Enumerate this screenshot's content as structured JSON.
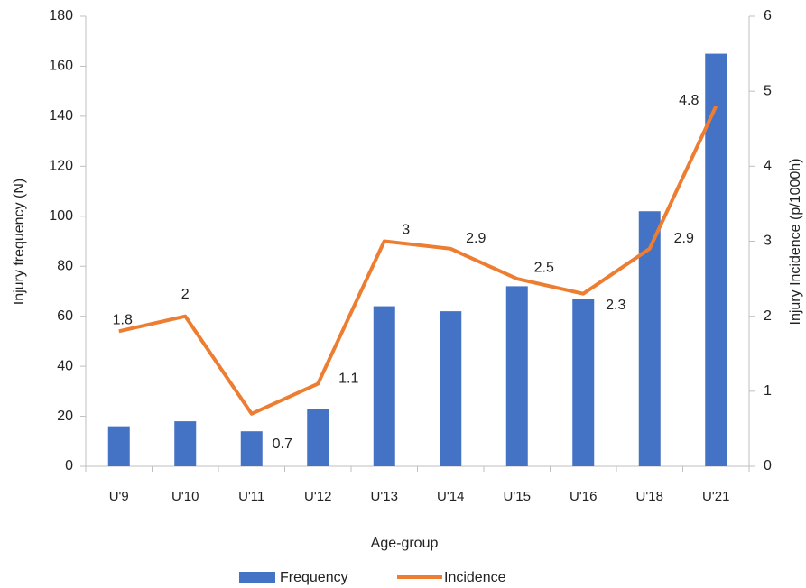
{
  "chart_data": {
    "type": "combo",
    "x_label": "Age-group",
    "y_label": "Injury frequency (N)",
    "y2_label": "Injury Incidence (p/1000h)",
    "categories": [
      "U'9",
      "U'10",
      "U'11",
      "U'12",
      "U'13",
      "U'14",
      "U'15",
      "U'16",
      "U'18",
      "U'21"
    ],
    "series": [
      {
        "name": "Frequency",
        "type": "bar",
        "color": "#4472c4",
        "values": [
          16,
          18,
          14,
          23,
          64,
          62,
          72,
          67,
          102,
          165
        ]
      },
      {
        "name": "Incidence",
        "type": "line",
        "axis": "y2",
        "color": "#ed7d31",
        "values": [
          1.8,
          2,
          0.7,
          1.1,
          3,
          2.9,
          2.5,
          2.3,
          2.9,
          4.8
        ],
        "data_labels": true
      }
    ],
    "ylim": [
      0,
      180
    ],
    "yticks": [
      0,
      20,
      40,
      60,
      80,
      100,
      120,
      140,
      160,
      180
    ],
    "y2lim": [
      0,
      6
    ],
    "y2ticks": [
      0,
      1,
      2,
      3,
      4,
      5,
      6
    ],
    "grid": false,
    "legend": "bottom"
  }
}
